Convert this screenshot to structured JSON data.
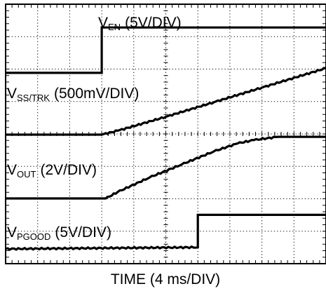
{
  "chart_data": {
    "type": "line",
    "title": "",
    "xlabel": "TIME (4 ms/DIV)",
    "x_units": "ms",
    "x_range": [
      0,
      40
    ],
    "divisions": {
      "x": 10,
      "y": 8
    },
    "grid": true,
    "series": [
      {
        "name": "V_EN (5V/DIV)",
        "label_main": "V",
        "label_sub": "EN",
        "label_scale": "(5V/DIV)",
        "points": [
          [
            0,
            -0.15
          ],
          [
            12,
            -0.15
          ],
          [
            12,
            1.25
          ],
          [
            40,
            1.25
          ]
        ]
      },
      {
        "name": "V_SS/TRK (500mV/DIV)",
        "label_main": "V",
        "label_sub": "SS/TRK",
        "label_scale": "(500mV/DIV)",
        "points": [
          [
            0,
            0
          ],
          [
            12,
            0
          ],
          [
            14,
            0.12
          ],
          [
            20,
            0.55
          ],
          [
            26,
            1.0
          ],
          [
            32,
            1.45
          ],
          [
            40,
            2.05
          ]
        ]
      },
      {
        "name": "V_OUT (2V/DIV)",
        "label_main": "V",
        "label_sub": "OUT",
        "label_scale": "(2V/DIV)",
        "points": [
          [
            0,
            0
          ],
          [
            12.5,
            0
          ],
          [
            14,
            0.2
          ],
          [
            18,
            0.65
          ],
          [
            22,
            1.05
          ],
          [
            26,
            1.45
          ],
          [
            29,
            1.7
          ],
          [
            31,
            1.8
          ],
          [
            34,
            1.9
          ],
          [
            40,
            1.9
          ]
        ]
      },
      {
        "name": "V_PGOOD (5V/DIV)",
        "label_main": "V",
        "label_sub": "PGOOD",
        "label_scale": "(5V/DIV)",
        "points": [
          [
            0,
            0
          ],
          [
            24,
            0.05
          ],
          [
            24,
            1.05
          ],
          [
            40,
            1.05
          ]
        ]
      }
    ]
  }
}
